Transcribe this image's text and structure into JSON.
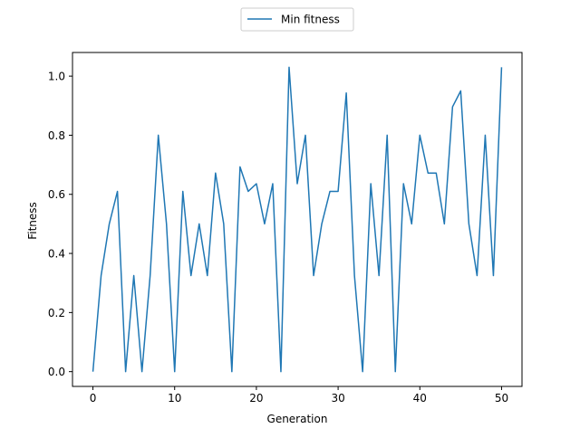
{
  "chart_data": {
    "type": "line",
    "title": "",
    "xlabel": "Generation",
    "ylabel": "Fitness",
    "xlim": [
      -2.5,
      52.5
    ],
    "ylim": [
      -0.05,
      1.08
    ],
    "x_ticks": [
      0,
      10,
      20,
      30,
      40,
      50
    ],
    "y_ticks": [
      0.0,
      0.2,
      0.4,
      0.6,
      0.8,
      1.0
    ],
    "x_tick_labels": [
      "0",
      "10",
      "20",
      "30",
      "40",
      "50"
    ],
    "y_tick_labels": [
      "0.0",
      "0.2",
      "0.4",
      "0.6",
      "0.8",
      "1.0"
    ],
    "grid": false,
    "legend": {
      "placement": "upper-center-outside",
      "entries": [
        "Min fitness"
      ]
    },
    "series": [
      {
        "name": "Min fitness",
        "color": "#1f77b4",
        "x": [
          0,
          1,
          2,
          3,
          4,
          5,
          6,
          7,
          8,
          9,
          10,
          11,
          12,
          13,
          14,
          15,
          16,
          17,
          18,
          19,
          20,
          21,
          22,
          23,
          24,
          25,
          26,
          27,
          28,
          29,
          30,
          31,
          32,
          33,
          34,
          35,
          36,
          37,
          38,
          39,
          40,
          41,
          42,
          43,
          44,
          45,
          46,
          47,
          48,
          49,
          50
        ],
        "values": [
          0.0,
          0.325,
          0.5,
          0.61,
          0.0,
          0.325,
          0.0,
          0.325,
          0.8,
          0.5,
          0.0,
          0.61,
          0.325,
          0.5,
          0.325,
          0.672,
          0.5,
          0.0,
          0.693,
          0.61,
          0.636,
          0.5,
          0.636,
          0.0,
          1.03,
          0.636,
          0.8,
          0.325,
          0.5,
          0.61,
          0.61,
          0.943,
          0.325,
          0.0,
          0.636,
          0.325,
          0.8,
          0.0,
          0.636,
          0.5,
          0.8,
          0.672,
          0.672,
          0.5,
          0.896,
          0.95,
          0.5,
          0.325,
          0.8,
          0.325,
          1.03
        ]
      }
    ]
  }
}
